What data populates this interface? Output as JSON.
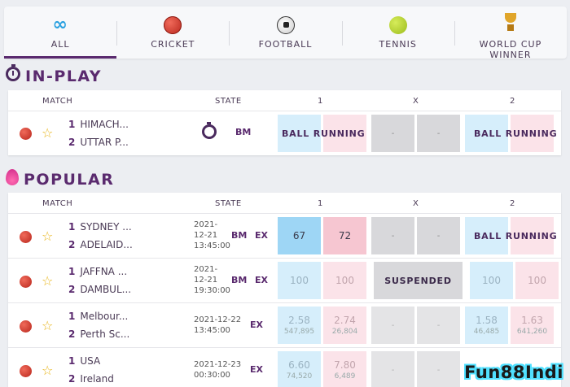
{
  "tabs": [
    {
      "label": "ALL",
      "icon": "infinity-icon"
    },
    {
      "label": "CRICKET",
      "icon": "cricket-ball-icon"
    },
    {
      "label": "FOOTBALL",
      "icon": "football-icon"
    },
    {
      "label": "TENNIS",
      "icon": "tennis-ball-icon"
    },
    {
      "label": "WORLD CUP\nWINNER",
      "icon": "trophy-icon"
    }
  ],
  "inplay": {
    "title": "IN-PLAY",
    "headers": {
      "match": "MATCH",
      "state": "STATE",
      "c1": "1",
      "cx": "X",
      "c2": "2"
    },
    "rows": [
      {
        "team1": "HIMACH...",
        "team2": "UTTAR P...",
        "badge1": "BM",
        "back1": "",
        "lay1": "",
        "overlay1": "BALL RUNNING",
        "x_back": "-",
        "x_lay": "-",
        "back2": "",
        "lay2": "",
        "overlay2": "BALL RUNNING"
      }
    ]
  },
  "popular": {
    "title": "POPULAR",
    "headers": {
      "match": "MATCH",
      "state": "STATE",
      "c1": "1",
      "cx": "X",
      "c2": "2"
    },
    "rows": [
      {
        "team1": "SYDNEY ...",
        "team2": "ADELAID...",
        "date": "2021-",
        "date2": "12-21",
        "time": "13:45:00",
        "badge1": "BM",
        "badge2": "EX",
        "back1": "67",
        "lay1": "72",
        "x_back": "-",
        "x_lay": "-",
        "back2": "",
        "lay2": "",
        "overlay2": "BALL RUNNING"
      },
      {
        "team1": "JAFFNA ...",
        "team2": "DAMBUL...",
        "date": "2021-",
        "date2": "12-21",
        "time": "19:30:00",
        "badge1": "BM",
        "badge2": "EX",
        "back1": "100",
        "lay1": "100",
        "suspended": "SUSPENDED",
        "back2": "100",
        "lay2": "100"
      },
      {
        "team1": "Melbour...",
        "team2": "Perth Sc...",
        "date": "2021-12-22",
        "time": "13:45:00",
        "badge2": "EX",
        "back1": "2.58",
        "back1_sub": "547,895",
        "lay1": "2.74",
        "lay1_sub": "26,804",
        "x_back": "-",
        "x_lay": "-",
        "back2": "1.58",
        "back2_sub": "46,485",
        "lay2": "1.63",
        "lay2_sub": "641,260"
      },
      {
        "team1": "USA",
        "team2": "Ireland",
        "date": "2021-12-23",
        "time": "00:30:00",
        "badge2": "EX",
        "back1": "6.60",
        "back1_sub": "74,520",
        "lay1": "7.80",
        "lay1_sub": "6,489",
        "x_back": "-",
        "x_lay": "-"
      }
    ]
  },
  "watermark": "Fun88Indi"
}
